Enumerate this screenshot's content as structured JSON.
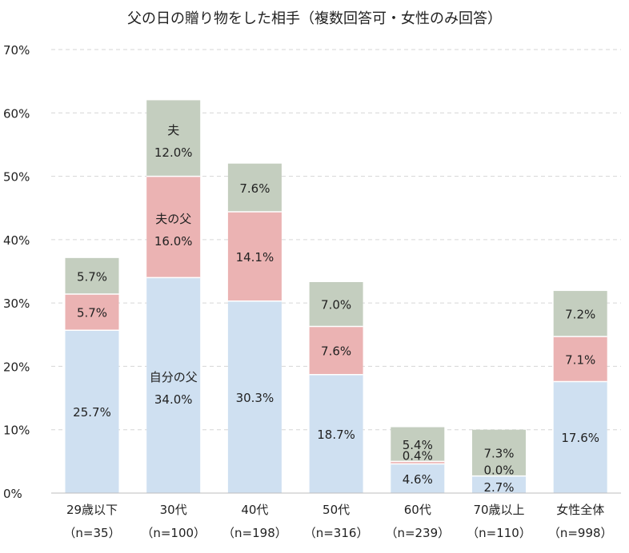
{
  "chart_data": {
    "type": "bar",
    "stacked": true,
    "title": "父の日の贈り物をした相手（複数回答可・女性のみ回答）",
    "categories": [
      "29歳以下",
      "30代",
      "40代",
      "50代",
      "60代",
      "70歳以上",
      "女性全体"
    ],
    "category_counts": [
      "（n=35）",
      "（n=100）",
      "（n=198）",
      "（n=316）",
      "（n=239）",
      "（n=110）",
      "（n=998）"
    ],
    "series": [
      {
        "name": "自分の父",
        "color": "#cfe0f1",
        "values": [
          25.7,
          34.0,
          30.3,
          18.7,
          4.6,
          2.7,
          17.6
        ],
        "labels": [
          "25.7%",
          "34.0%",
          "30.3%",
          "18.7%",
          "4.6%",
          "2.7%",
          "17.6%"
        ]
      },
      {
        "name": "夫の父",
        "color": "#ebb3b3",
        "values": [
          5.7,
          16.0,
          14.1,
          7.6,
          0.4,
          0.0,
          7.1
        ],
        "labels": [
          "5.7%",
          "16.0%",
          "14.1%",
          "7.6%",
          "0.4%",
          "0.0%",
          "7.1%"
        ]
      },
      {
        "name": "夫",
        "color": "#c4cebf",
        "values": [
          5.7,
          12.0,
          7.6,
          7.0,
          5.4,
          7.3,
          7.2
        ],
        "labels": [
          "5.7%",
          "12.0%",
          "7.6%",
          "7.0%",
          "5.4%",
          "7.3%",
          "7.2%"
        ]
      }
    ],
    "series_name_shown_in_column": 1,
    "y_ticks": [
      "0%",
      "10%",
      "20%",
      "30%",
      "40%",
      "50%",
      "60%",
      "70%"
    ],
    "ylim": [
      0,
      70
    ],
    "grid": true,
    "legend": "none"
  }
}
